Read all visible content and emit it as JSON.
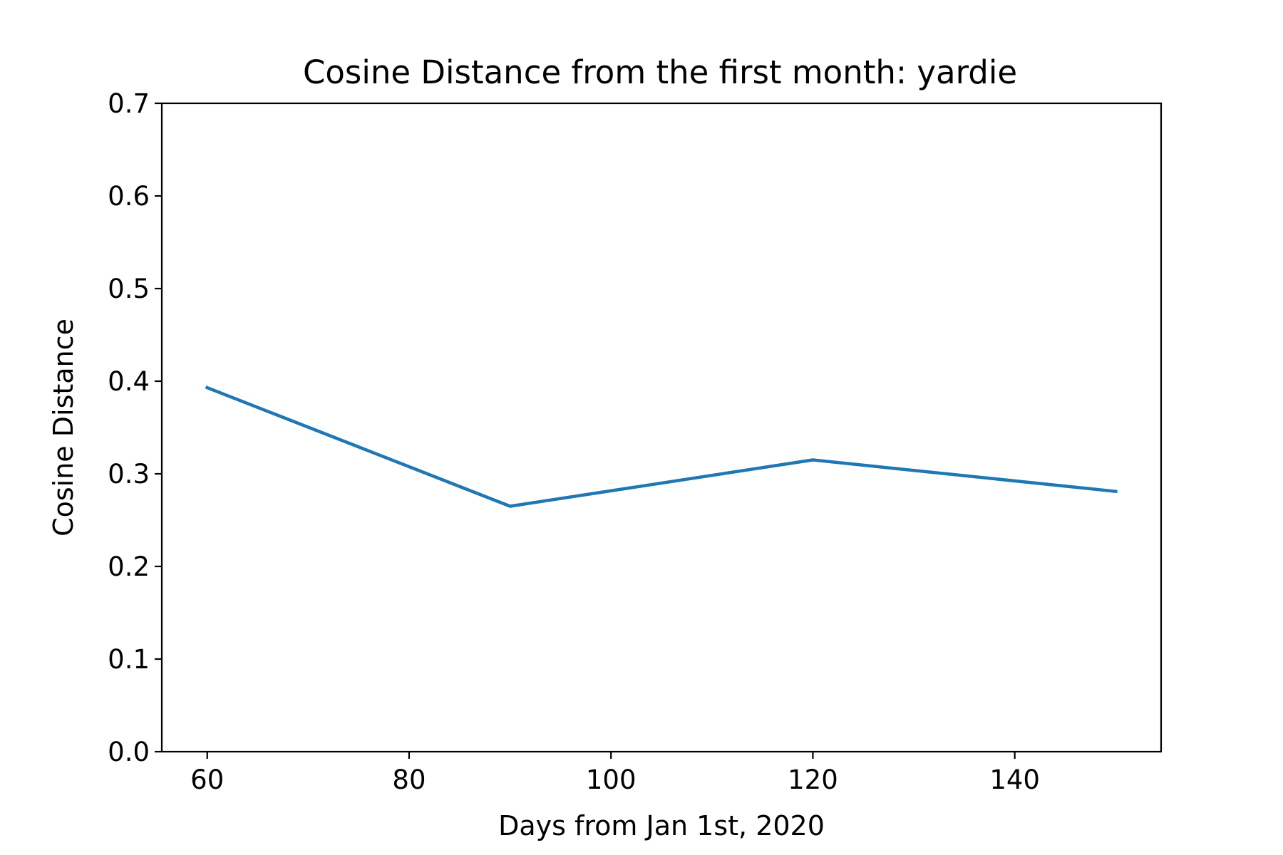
{
  "chart_data": {
    "type": "line",
    "title": "Cosine Distance from the first month: yardie",
    "xlabel": "Days from Jan 1st, 2020",
    "ylabel": "Cosine Distance",
    "xlim": [
      55.5,
      154.5
    ],
    "ylim": [
      0.0,
      0.7
    ],
    "xticks": [
      60,
      80,
      100,
      120,
      140
    ],
    "xtick_labels": [
      "60",
      "80",
      "100",
      "120",
      "140"
    ],
    "yticks": [
      0.0,
      0.1,
      0.2,
      0.3,
      0.4,
      0.5,
      0.6,
      0.7
    ],
    "ytick_labels": [
      "0.0",
      "0.1",
      "0.2",
      "0.3",
      "0.4",
      "0.5",
      "0.6",
      "0.7"
    ],
    "grid": false,
    "series": [
      {
        "color": "#1f77b4",
        "x": [
          60,
          90,
          120,
          150
        ],
        "y": [
          0.393,
          0.265,
          0.315,
          0.281
        ]
      }
    ]
  }
}
